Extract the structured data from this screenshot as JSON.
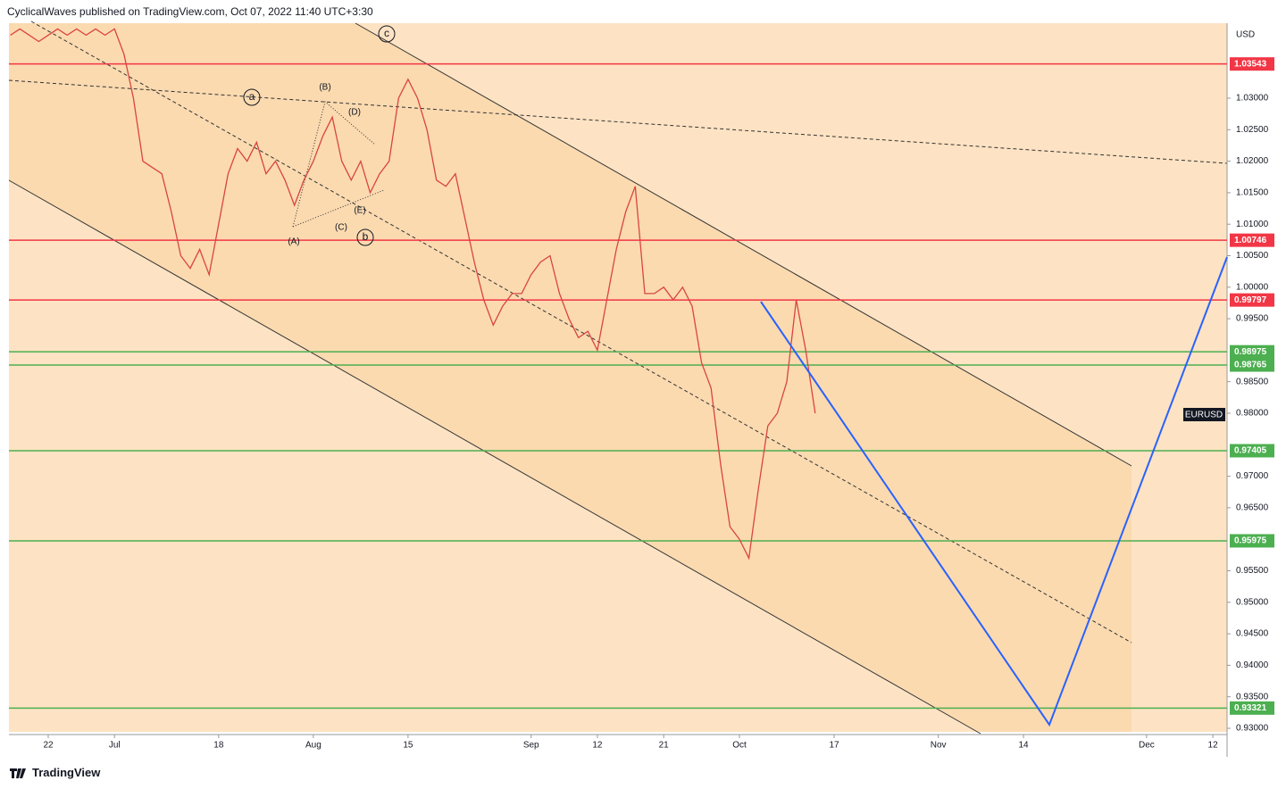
{
  "header": {
    "text": "CyclicalWaves published on TradingView.com, Oct 07, 2022 11:40 UTC+3:30"
  },
  "footer": {
    "brand": "TradingView"
  },
  "chart_data": {
    "type": "line",
    "symbol": "EURUSD",
    "currency": "USD",
    "color": "#d9453f",
    "x": [
      -4,
      -3,
      -2,
      -1,
      0,
      1,
      2,
      3,
      4,
      5,
      6,
      7,
      8,
      9,
      10,
      11,
      12,
      13,
      14,
      15,
      16,
      17,
      18,
      19,
      20,
      21,
      22,
      23,
      24,
      25,
      26,
      27,
      28,
      29,
      30,
      31,
      32,
      33,
      34,
      35,
      36,
      37,
      38,
      39,
      40,
      41,
      42,
      43,
      44,
      45,
      46,
      47,
      48,
      49,
      50,
      51,
      52,
      53,
      54,
      55,
      56,
      57,
      58,
      59,
      60,
      61,
      62,
      63,
      64,
      65,
      66,
      67,
      68,
      69,
      70,
      71,
      72,
      73,
      74,
      75,
      76,
      77,
      78,
      79,
      80,
      81
    ],
    "values": [
      1.04,
      1.041,
      1.04,
      1.039,
      1.04,
      1.041,
      1.04,
      1.041,
      1.04,
      1.041,
      1.04,
      1.041,
      1.037,
      1.03,
      1.02,
      1.019,
      1.018,
      1.012,
      1.005,
      1.003,
      1.006,
      1.002,
      1.01,
      1.018,
      1.022,
      1.02,
      1.023,
      1.018,
      1.02,
      1.017,
      1.013,
      1.017,
      1.02,
      1.024,
      1.027,
      1.02,
      1.017,
      1.02,
      1.015,
      1.018,
      1.02,
      1.03,
      1.033,
      1.03,
      1.025,
      1.017,
      1.016,
      1.018,
      1.011,
      1.004,
      0.998,
      0.994,
      0.997,
      0.999,
      0.999,
      1.002,
      1.004,
      1.005,
      0.999,
      0.995,
      0.992,
      0.993,
      0.99,
      0.998,
      1.006,
      1.012,
      1.016,
      0.999,
      0.999,
      1.0,
      0.998,
      1.0,
      0.997,
      0.988,
      0.984,
      0.972,
      0.962,
      0.96,
      0.957,
      0.968,
      0.978,
      0.98,
      0.985,
      0.998,
      0.99,
      0.98
    ],
    "xlim": [
      -4.15,
      124.5
    ],
    "ylim": [
      0.92943,
      1.0419
    ],
    "xticks": [
      {
        "value": 0,
        "label": "22"
      },
      {
        "value": 7,
        "label": "Jul"
      },
      {
        "value": 18,
        "label": "18"
      },
      {
        "value": 28,
        "label": "Aug"
      },
      {
        "value": 38,
        "label": "15"
      },
      {
        "value": 51,
        "label": "Sep"
      },
      {
        "value": 58,
        "label": "12"
      },
      {
        "value": 65,
        "label": "21"
      },
      {
        "value": 73,
        "label": "Oct"
      },
      {
        "value": 83,
        "label": "17"
      },
      {
        "value": 94,
        "label": "Nov"
      },
      {
        "value": 103,
        "label": "14"
      },
      {
        "value": 116,
        "label": "Dec"
      },
      {
        "value": 123,
        "label": "12"
      }
    ],
    "yticks": [
      {
        "value": 0.93,
        "label": "0.93000"
      },
      {
        "value": 0.935,
        "label": "0.93500"
      },
      {
        "value": 0.94,
        "label": "0.94000"
      },
      {
        "value": 0.945,
        "label": "0.94500"
      },
      {
        "value": 0.95,
        "label": "0.95000"
      },
      {
        "value": 0.955,
        "label": "0.95500"
      },
      {
        "value": 0.965,
        "label": "0.96500"
      },
      {
        "value": 0.97,
        "label": "0.97000"
      },
      {
        "value": 0.98,
        "label": "0.98000"
      },
      {
        "value": 0.985,
        "label": "0.98500"
      },
      {
        "value": 0.995,
        "label": "0.99500"
      },
      {
        "value": 1.0,
        "label": "1.00000"
      },
      {
        "value": 1.005,
        "label": "1.00500"
      },
      {
        "value": 1.01,
        "label": "1.01000"
      },
      {
        "value": 1.015,
        "label": "1.01500"
      },
      {
        "value": 1.02,
        "label": "1.02000"
      },
      {
        "value": 1.025,
        "label": "1.02500"
      },
      {
        "value": 1.03,
        "label": "1.03000"
      }
    ],
    "hlines": [
      {
        "value": 1.03543,
        "color": "#f23645"
      },
      {
        "value": 1.00746,
        "color": "#f23645"
      },
      {
        "value": 0.99797,
        "color": "#f23645"
      },
      {
        "value": 0.98975,
        "color": "#4caf50"
      },
      {
        "value": 0.98765,
        "color": "#4caf50"
      },
      {
        "value": 0.97405,
        "color": "#4caf50"
      },
      {
        "value": 0.95975,
        "color": "#4caf50"
      },
      {
        "value": 0.93321,
        "color": "#4caf50"
      }
    ],
    "wave_labels": [
      "a",
      "b",
      "c",
      "(A)",
      "(B)",
      "(C)",
      "(D)",
      "(E)"
    ]
  }
}
